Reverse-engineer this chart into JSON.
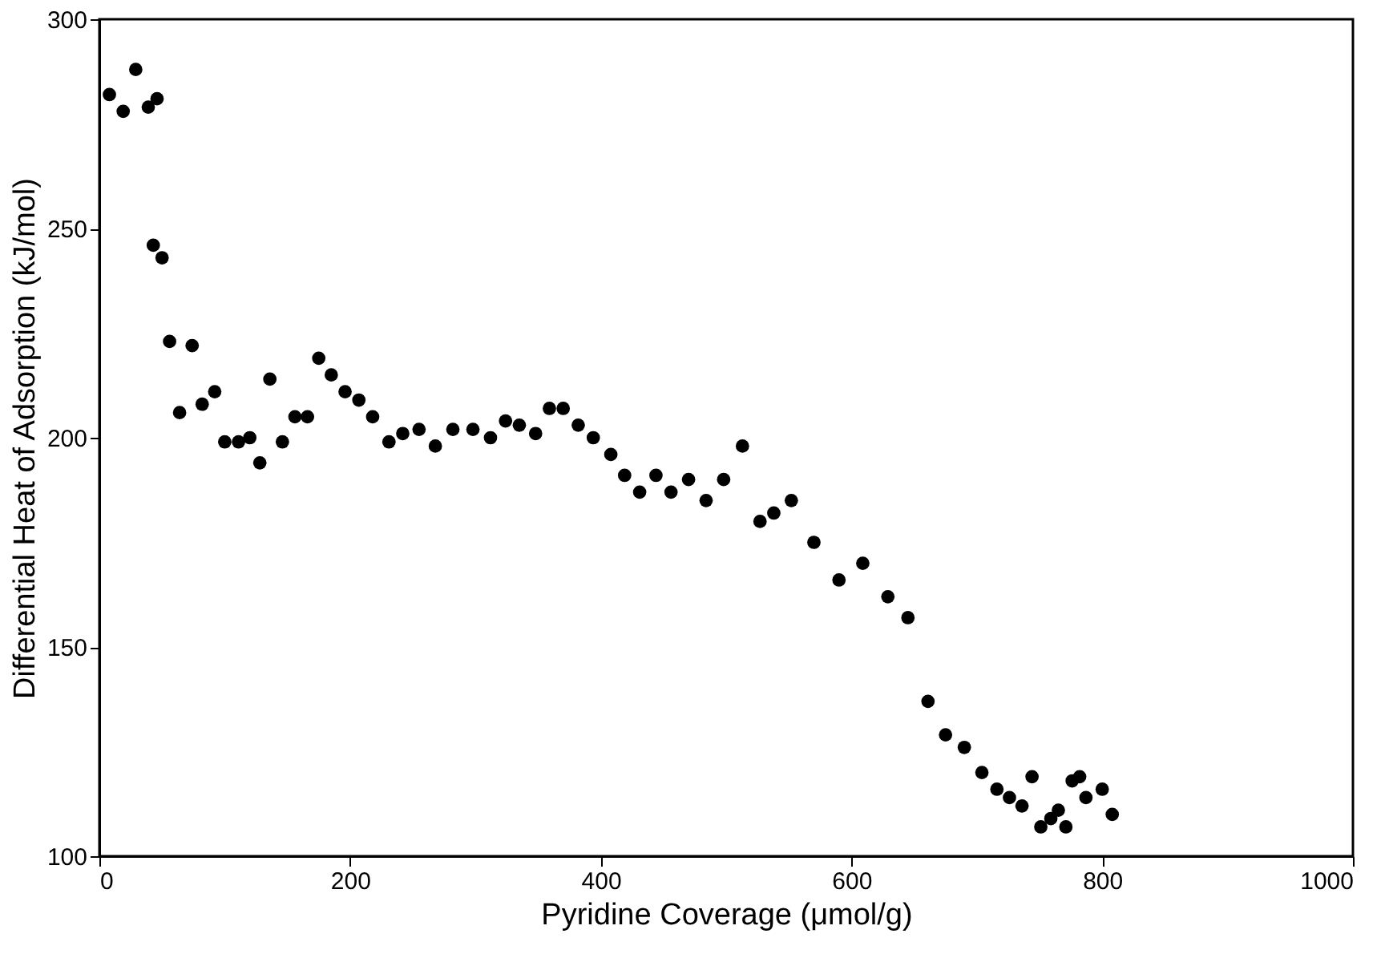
{
  "chart_data": {
    "type": "scatter",
    "xlabel": "Pyridine Coverage (μmol/g)",
    "ylabel": "Differential Heat of Adsorption (kJ/mol)",
    "xlim": [
      0,
      1000
    ],
    "xticks": [
      0,
      200,
      400,
      600,
      800,
      1000
    ],
    "ylim": [
      100,
      300
    ],
    "yticks": [
      100,
      150,
      200,
      250,
      300
    ],
    "grid": false,
    "marker": "circle",
    "series": [
      {
        "color": "#000000",
        "x": [
          8,
          19,
          29,
          39,
          46,
          43,
          50,
          56,
          64,
          74,
          82,
          92,
          100,
          111,
          120,
          128,
          136,
          146,
          156,
          166,
          175,
          185,
          196,
          207,
          218,
          231,
          242,
          255,
          268,
          282,
          298,
          312,
          324,
          335,
          348,
          359,
          370,
          382,
          394,
          408,
          419,
          431,
          444,
          456,
          470,
          484,
          498,
          513,
          527,
          538,
          552,
          570,
          590,
          609,
          629,
          645,
          661,
          675,
          690,
          704,
          716,
          726,
          736,
          744,
          751,
          759,
          765,
          771,
          776,
          782,
          787,
          800,
          808
        ],
        "values": [
          282,
          278,
          288,
          279,
          281,
          246,
          243,
          223,
          206,
          222,
          208,
          211,
          199,
          199,
          200,
          194,
          214,
          199,
          205,
          205,
          219,
          215,
          211,
          209,
          205,
          199,
          201,
          202,
          198,
          202,
          202,
          200,
          204,
          203,
          201,
          207,
          207,
          203,
          200,
          196,
          191,
          187,
          191,
          187,
          190,
          185,
          190,
          198,
          180,
          182,
          185,
          175,
          166,
          170,
          162,
          157,
          137,
          129,
          126,
          120,
          116,
          114,
          112,
          119,
          107,
          109,
          111,
          107,
          118,
          119,
          114,
          116,
          110
        ]
      }
    ]
  }
}
